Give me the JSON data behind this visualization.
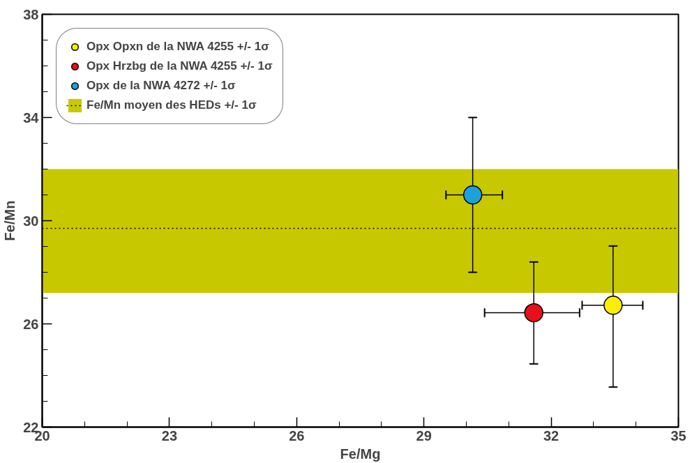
{
  "chart_data": {
    "type": "scatter",
    "xlabel": "Fe/Mg",
    "ylabel": "Fe/Mn",
    "xlim": [
      20,
      35
    ],
    "ylim": [
      22,
      38
    ],
    "xticks": [
      20,
      23,
      26,
      29,
      32,
      35
    ],
    "yticks": [
      22,
      26,
      30,
      34,
      38
    ],
    "marker": "circle",
    "legend": "top left",
    "series": [
      {
        "name": "Opx Opxn de la NWA 4255 +/- 1σ",
        "color": "#ffee00",
        "x": [
          33.46
        ],
        "values": [
          26.72
        ],
        "errors": [
          [
            23.55,
            29.02
          ]
        ],
        "xerrors": [
          [
            32.73,
            34.16
          ]
        ]
      },
      {
        "name": "Opx Hrzbg de la NWA 4255 +/- 1σ",
        "color": "#e8101a",
        "x": [
          31.59
        ],
        "values": [
          26.43
        ],
        "errors": [
          [
            24.45,
            28.4
          ]
        ],
        "xerrors": [
          [
            30.43,
            32.67
          ]
        ]
      },
      {
        "name": "Opx de la NWA 4272 +/- 1σ",
        "color": "#1ea0dc",
        "x": [
          30.15
        ],
        "values": [
          31.0
        ],
        "errors": [
          [
            28.0,
            34.0
          ]
        ],
        "xerrors": [
          [
            29.52,
            30.85
          ]
        ]
      }
    ],
    "bands": [
      {
        "axis": "y",
        "from": 27.2,
        "to": 32.0,
        "label": "Fe/Mn moyen des HEDs +/- 1σ",
        "color": "#c8c800"
      }
    ],
    "ref_lines": [
      {
        "axis": "y",
        "value": 29.7,
        "label": null,
        "color": "#000000",
        "line_style": "dotted"
      }
    ]
  }
}
